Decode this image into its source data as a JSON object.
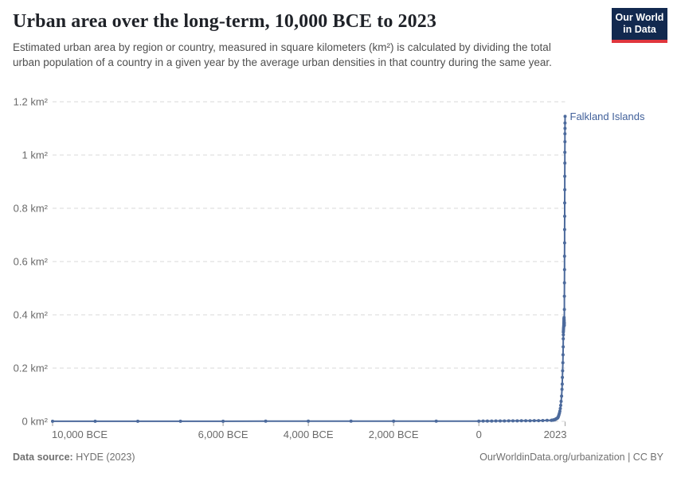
{
  "header": {
    "title": "Urban area over the long-term, 10,000 BCE to 2023",
    "subtitle": "Estimated urban area by region or country, measured in square kilometers (km²) is calculated by dividing the total urban population of a country in a given year by the average urban densities in that country during the same year.",
    "logo": {
      "line1": "Our World",
      "line2": "in Data"
    }
  },
  "chart_data": {
    "type": "line",
    "title": "Urban area over the long-term, 10,000 BCE to 2023",
    "xlabel": "",
    "ylabel": "",
    "x_range": [
      -10000,
      2023
    ],
    "y_range": [
      0,
      1.2
    ],
    "grid": "dashed-horizontal",
    "legend_position": "end-of-line-label",
    "y_ticks": [
      {
        "value": 0,
        "label": "0 km²"
      },
      {
        "value": 0.2,
        "label": "0.2 km²"
      },
      {
        "value": 0.4,
        "label": "0.4 km²"
      },
      {
        "value": 0.6,
        "label": "0.6 km²"
      },
      {
        "value": 0.8,
        "label": "0.8 km²"
      },
      {
        "value": 1,
        "label": "1 km²"
      },
      {
        "value": 1.2,
        "label": "1.2 km²"
      }
    ],
    "x_ticks": [
      {
        "value": -10000,
        "label": "10,000 BCE",
        "align": "start"
      },
      {
        "value": -6000,
        "label": "6,000 BCE",
        "align": "middle"
      },
      {
        "value": -4000,
        "label": "4,000 BCE",
        "align": "middle"
      },
      {
        "value": -2000,
        "label": "2,000 BCE",
        "align": "middle"
      },
      {
        "value": 0,
        "label": "0",
        "align": "middle"
      },
      {
        "value": 2023,
        "label": "2023",
        "align": "end"
      }
    ],
    "colors": {
      "line": "#4C6A9C",
      "entity_label": "#41609a",
      "grid": "#dadada",
      "tick_text": "#6a6a6a"
    },
    "series": [
      {
        "name": "Falkland Islands",
        "end_label": "Falkland Islands",
        "points": [
          [
            -10000,
            0.0003
          ],
          [
            -9000,
            0.0003
          ],
          [
            -8000,
            0.0003
          ],
          [
            -7000,
            0.0004
          ],
          [
            -6000,
            0.0004
          ],
          [
            -5000,
            0.0005
          ],
          [
            -4000,
            0.0005
          ],
          [
            -3000,
            0.0006
          ],
          [
            -2000,
            0.0007
          ],
          [
            -1000,
            0.0008
          ],
          [
            0,
            0.001
          ],
          [
            100,
            0.0011
          ],
          [
            200,
            0.0012
          ],
          [
            300,
            0.0013
          ],
          [
            400,
            0.0014
          ],
          [
            500,
            0.0015
          ],
          [
            600,
            0.0016
          ],
          [
            700,
            0.0017
          ],
          [
            800,
            0.0018
          ],
          [
            900,
            0.0019
          ],
          [
            1000,
            0.002
          ],
          [
            1100,
            0.0022
          ],
          [
            1200,
            0.0024
          ],
          [
            1300,
            0.0026
          ],
          [
            1400,
            0.0028
          ],
          [
            1500,
            0.003
          ],
          [
            1600,
            0.0035
          ],
          [
            1700,
            0.004
          ],
          [
            1710,
            0.0042
          ],
          [
            1720,
            0.0044
          ],
          [
            1730,
            0.0046
          ],
          [
            1740,
            0.0048
          ],
          [
            1750,
            0.005
          ],
          [
            1760,
            0.0055
          ],
          [
            1770,
            0.006
          ],
          [
            1780,
            0.0065
          ],
          [
            1790,
            0.007
          ],
          [
            1800,
            0.008
          ],
          [
            1810,
            0.009
          ],
          [
            1820,
            0.01
          ],
          [
            1830,
            0.011
          ],
          [
            1840,
            0.012
          ],
          [
            1850,
            0.013
          ],
          [
            1860,
            0.016
          ],
          [
            1870,
            0.02
          ],
          [
            1880,
            0.025
          ],
          [
            1890,
            0.031
          ],
          [
            1900,
            0.038
          ],
          [
            1910,
            0.048
          ],
          [
            1920,
            0.06
          ],
          [
            1930,
            0.075
          ],
          [
            1940,
            0.095
          ],
          [
            1950,
            0.12
          ],
          [
            1955,
            0.14
          ],
          [
            1960,
            0.165
          ],
          [
            1965,
            0.19
          ],
          [
            1970,
            0.22
          ],
          [
            1975,
            0.25
          ],
          [
            1978,
            0.28
          ],
          [
            1980,
            0.31
          ],
          [
            1981,
            0.325
          ],
          [
            1982,
            0.335
          ],
          [
            1984,
            0.34
          ],
          [
            1986,
            0.345
          ],
          [
            1988,
            0.35
          ],
          [
            1990,
            0.355
          ],
          [
            1992,
            0.36
          ],
          [
            1993,
            0.365
          ],
          [
            1994,
            0.37
          ],
          [
            1995,
            0.375
          ],
          [
            1996,
            0.38
          ],
          [
            1997,
            0.385
          ],
          [
            1998,
            0.39
          ],
          [
            1999,
            0.385
          ],
          [
            2000,
            0.38
          ],
          [
            2001,
            0.375
          ],
          [
            2002,
            0.37
          ],
          [
            2003,
            0.365
          ],
          [
            2004,
            0.36
          ],
          [
            2005,
            0.37
          ],
          [
            2006,
            0.42
          ],
          [
            2007,
            0.47
          ],
          [
            2008,
            0.52
          ],
          [
            2009,
            0.57
          ],
          [
            2010,
            0.62
          ],
          [
            2011,
            0.67
          ],
          [
            2012,
            0.72
          ],
          [
            2013,
            0.77
          ],
          [
            2014,
            0.82
          ],
          [
            2015,
            0.87
          ],
          [
            2016,
            0.92
          ],
          [
            2017,
            0.97
          ],
          [
            2018,
            1.01
          ],
          [
            2019,
            1.05
          ],
          [
            2020,
            1.08
          ],
          [
            2021,
            1.1
          ],
          [
            2022,
            1.12
          ],
          [
            2023,
            1.145
          ]
        ]
      }
    ]
  },
  "footer": {
    "source_label": "Data source:",
    "source_value": " HYDE (2023)",
    "attribution": "OurWorldinData.org/urbanization | CC BY"
  }
}
